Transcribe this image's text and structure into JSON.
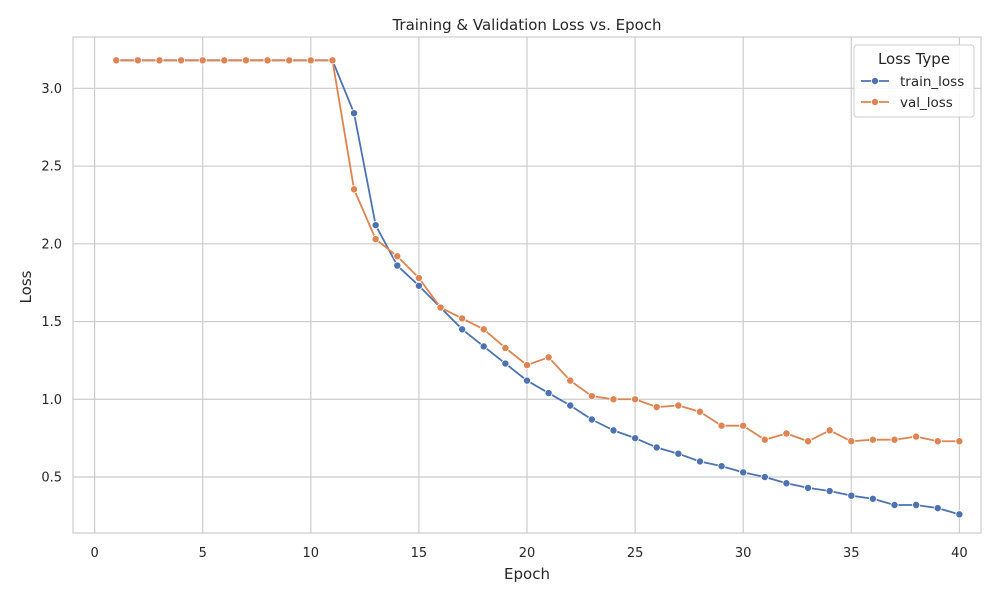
{
  "chart_data": {
    "type": "line",
    "title": "Training & Validation Loss vs. Epoch",
    "xlabel": "Epoch",
    "ylabel": "Loss",
    "xlim": [
      -1,
      41
    ],
    "ylim": [
      0.14,
      3.33
    ],
    "xticks": [
      0,
      5,
      10,
      15,
      20,
      25,
      30,
      35,
      40
    ],
    "yticks": [
      0.5,
      1.0,
      1.5,
      2.0,
      2.5,
      3.0
    ],
    "ytick_labels": [
      "0.5",
      "1.0",
      "1.5",
      "2.0",
      "2.5",
      "3.0"
    ],
    "grid": true,
    "legend": {
      "title": "Loss Type",
      "placement": "top-right"
    },
    "x": [
      1,
      2,
      3,
      4,
      5,
      6,
      7,
      8,
      9,
      10,
      11,
      12,
      13,
      14,
      15,
      16,
      17,
      18,
      19,
      20,
      21,
      22,
      23,
      24,
      25,
      26,
      27,
      28,
      29,
      30,
      31,
      32,
      33,
      34,
      35,
      36,
      37,
      38,
      39,
      40
    ],
    "series": [
      {
        "name": "train_loss",
        "color": "#4c72b0",
        "values": [
          3.18,
          3.18,
          3.18,
          3.18,
          3.18,
          3.18,
          3.18,
          3.18,
          3.18,
          3.18,
          3.18,
          2.84,
          2.12,
          1.86,
          1.73,
          1.59,
          1.45,
          1.34,
          1.23,
          1.12,
          1.04,
          0.96,
          0.87,
          0.8,
          0.75,
          0.69,
          0.65,
          0.6,
          0.57,
          0.53,
          0.5,
          0.46,
          0.43,
          0.41,
          0.38,
          0.36,
          0.32,
          0.32,
          0.3,
          0.26
        ]
      },
      {
        "name": "val_loss",
        "color": "#dd8452",
        "values": [
          3.18,
          3.18,
          3.18,
          3.18,
          3.18,
          3.18,
          3.18,
          3.18,
          3.18,
          3.18,
          3.18,
          2.35,
          2.03,
          1.92,
          1.78,
          1.59,
          1.52,
          1.45,
          1.33,
          1.22,
          1.27,
          1.12,
          1.02,
          1.0,
          1.0,
          0.95,
          0.96,
          0.92,
          0.83,
          0.83,
          0.74,
          0.78,
          0.73,
          0.8,
          0.73,
          0.74,
          0.74,
          0.76,
          0.73,
          0.73
        ]
      }
    ]
  }
}
